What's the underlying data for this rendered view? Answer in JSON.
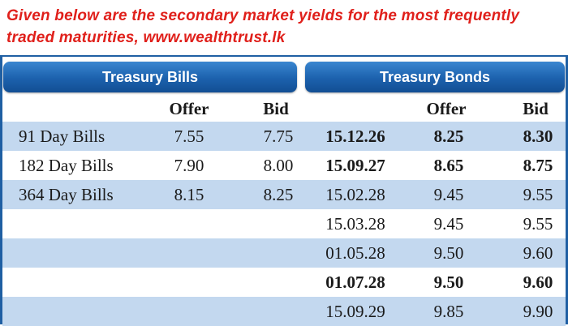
{
  "caption": "Given below are the secondary market yields for the most frequently traded maturities, www.wealthtrust.lk",
  "bills": {
    "header": "Treasury Bills",
    "col_offer": "Offer",
    "col_bid": "Bid",
    "rows": [
      {
        "name": "91 Day Bills",
        "offer": "7.55",
        "bid": "7.75"
      },
      {
        "name": "182 Day Bills",
        "offer": "7.90",
        "bid": "8.00"
      },
      {
        "name": "364 Day Bills",
        "offer": "8.15",
        "bid": "8.25"
      }
    ]
  },
  "bonds": {
    "header": "Treasury Bonds",
    "col_offer": "Offer",
    "col_bid": "Bid",
    "rows": [
      {
        "maturity": "15.12.26",
        "offer": "8.25",
        "bid": "8.30",
        "bold": true
      },
      {
        "maturity": "15.09.27",
        "offer": "8.65",
        "bid": "8.75",
        "bold": true
      },
      {
        "maturity": "15.02.28",
        "offer": "9.45",
        "bid": "9.55",
        "bold": false
      },
      {
        "maturity": "15.03.28",
        "offer": "9.45",
        "bid": "9.55",
        "bold": false
      },
      {
        "maturity": "01.05.28",
        "offer": "9.50",
        "bid": "9.60",
        "bold": false
      },
      {
        "maturity": "01.07.28",
        "offer": "9.50",
        "bid": "9.60",
        "bold": true
      },
      {
        "maturity": "15.09.29",
        "offer": "9.85",
        "bid": "9.90",
        "bold": false
      }
    ]
  },
  "colors": {
    "caption": "#e0201b",
    "header_blue": "#1c61ad",
    "row_shade": "#c3d8ef"
  }
}
